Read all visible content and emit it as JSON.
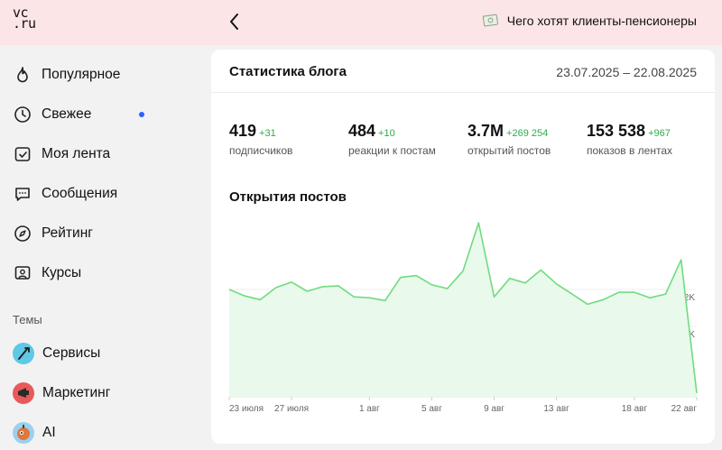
{
  "header": {
    "logo_top": "vc",
    "logo_bottom": ".ru",
    "promo_text": "Чего хотят клиенты-пенсионеры"
  },
  "sidebar": {
    "items": [
      {
        "label": "Популярное",
        "icon": "flame-icon"
      },
      {
        "label": "Свежее",
        "icon": "clock-icon",
        "has_new": true
      },
      {
        "label": "Моя лента",
        "icon": "feed-icon"
      },
      {
        "label": "Сообщения",
        "icon": "chat-icon"
      },
      {
        "label": "Рейтинг",
        "icon": "compass-icon"
      },
      {
        "label": "Курсы",
        "icon": "courses-icon"
      }
    ],
    "topics_title": "Темы",
    "topics": [
      {
        "label": "Сервисы",
        "color": "#5ec8e6"
      },
      {
        "label": "Маркетинг",
        "color": "#e85a5a"
      },
      {
        "label": "AI",
        "color": "#9ad0f0"
      }
    ]
  },
  "card": {
    "title": "Статистика блога",
    "date_range": "23.07.2025 – 22.08.2025",
    "stats": [
      {
        "value": "419",
        "delta": "+31",
        "label": "подписчиков"
      },
      {
        "value": "484",
        "delta": "+10",
        "label": "реакции к постам"
      },
      {
        "value": "3.7M",
        "delta": "+269 254",
        "label": "открытий постов"
      },
      {
        "value": "153 538",
        "delta": "+967",
        "label": "показов в лентах"
      }
    ],
    "chart_title": "Открытия постов"
  },
  "colors": {
    "accent_green": "#2eaa4c",
    "line_green": "#6fdc7f",
    "header_bg": "#fce5e6",
    "new_dot": "#2962ff"
  },
  "chart_data": {
    "type": "area",
    "title": "Открытия постов",
    "x_ticks": [
      "23 июля",
      "27 июля",
      "1 авг",
      "5 авг",
      "9 авг",
      "13 авг",
      "18 авг",
      "22 авг"
    ],
    "y_ticks": [
      "9.2K",
      "7.2K",
      "5.2K"
    ],
    "ylim": [
      3400,
      13000
    ],
    "grid": true,
    "series": [
      {
        "x": [
          "23 июля",
          "24 июля",
          "25 июля",
          "26 июля",
          "27 июля",
          "28 июля",
          "29 июля",
          "30 июля",
          "31 июля",
          "1 авг",
          "2 авг",
          "3 авг",
          "4 авг",
          "5 авг",
          "6 авг",
          "7 авг",
          "8 авг",
          "9 авг",
          "10 авг",
          "11 авг",
          "12 авг",
          "13 авг",
          "14 авг",
          "15 авг",
          "16 авг",
          "17 авг",
          "18 авг",
          "19 авг",
          "20 авг",
          "21 авг",
          "22 авг"
        ],
        "values": [
          9200,
          8850,
          8650,
          9300,
          9600,
          9100,
          9350,
          9400,
          8800,
          8750,
          8600,
          9850,
          9950,
          9450,
          9250,
          10200,
          12800,
          8800,
          9800,
          9550,
          10250,
          9500,
          8950,
          8400,
          8650,
          9050,
          9050,
          8750,
          8950,
          10800,
          3600
        ]
      }
    ]
  }
}
